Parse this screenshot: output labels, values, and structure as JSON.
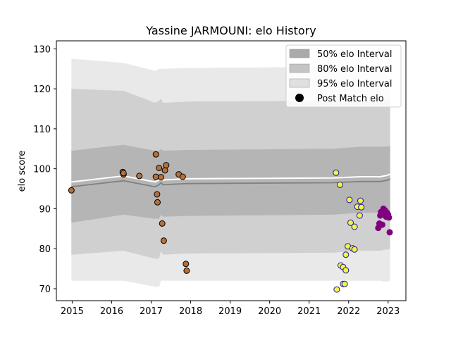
{
  "chart_data": {
    "type": "scatter",
    "title": "Yassine JARMOUNI: elo History",
    "xlabel": "",
    "ylabel": "elo score",
    "xlim": [
      2014.6,
      2023.45
    ],
    "ylim": [
      67,
      132
    ],
    "x_ticks": [
      2015,
      2016,
      2017,
      2018,
      2019,
      2020,
      2021,
      2022,
      2023
    ],
    "x_tick_labels": [
      "2015",
      "2016",
      "2017",
      "2018",
      "2019",
      "2020",
      "2021",
      "2022",
      "2023"
    ],
    "y_ticks": [
      70,
      80,
      90,
      100,
      110,
      120,
      130
    ],
    "y_tick_labels": [
      "70",
      "80",
      "90",
      "100",
      "110",
      "120",
      "130"
    ],
    "grid": false,
    "legend_position": "top-right",
    "legend": [
      {
        "label": "50% elo Interval",
        "kind": "band",
        "color": "#aaaaaa"
      },
      {
        "label": "80% elo Interval",
        "kind": "band",
        "color": "#c4c4c4"
      },
      {
        "label": "95% elo Interval",
        "kind": "band",
        "color": "#e0e0e0"
      },
      {
        "label": "Post Match elo",
        "kind": "marker",
        "color": "#000000"
      }
    ],
    "bands": {
      "x": [
        2014.98,
        2016.3,
        2017.1,
        2017.2,
        2017.25,
        2017.3,
        2017.9,
        2021.6,
        2022.3,
        2022.8,
        2022.9,
        2023.0,
        2023.05
      ],
      "mean": [
        95.5,
        97.0,
        95.5,
        96.0,
        96.5,
        96.0,
        96.3,
        96.5,
        96.8,
        96.8,
        97.0,
        97.2,
        97.5
      ],
      "band50": {
        "lower": [
          86.5,
          88.5,
          87.5,
          87.5,
          88.5,
          88.0,
          88.2,
          88.5,
          89.0,
          89.0,
          89.2,
          89.3,
          89.5
        ],
        "upper": [
          104.5,
          106.0,
          104.5,
          104.5,
          105.0,
          104.5,
          104.7,
          105.0,
          105.5,
          105.5,
          105.5,
          105.6,
          105.8
        ]
      },
      "band80": {
        "lower": [
          78.5,
          79.5,
          77.5,
          77.5,
          79.5,
          78.5,
          78.8,
          79.0,
          79.5,
          79.5,
          79.7,
          79.8,
          80.0
        ],
        "upper": [
          120.0,
          119.5,
          116.5,
          117.0,
          117.5,
          116.5,
          116.8,
          117.0,
          117.2,
          117.2,
          117.2,
          117.3,
          117.5
        ]
      },
      "band95": {
        "lower": [
          72.0,
          72.0,
          70.5,
          70.5,
          72.0,
          72.0,
          72.0,
          72.0,
          72.0,
          72.0,
          71.8,
          71.8,
          72.0
        ],
        "upper": [
          127.5,
          126.5,
          124.5,
          125.0,
          125.0,
          125.0,
          125.2,
          125.5,
          125.7,
          125.7,
          125.8,
          125.8,
          126.0
        ]
      }
    },
    "series": [
      {
        "color": "#b5703a",
        "points": [
          [
            2014.98,
            94.6
          ],
          [
            2016.28,
            99.2
          ],
          [
            2016.3,
            98.6
          ],
          [
            2016.3,
            98.9
          ],
          [
            2016.7,
            98.2
          ],
          [
            2017.12,
            103.6
          ],
          [
            2017.12,
            98.0
          ],
          [
            2017.15,
            93.6
          ],
          [
            2017.16,
            91.6
          ],
          [
            2017.2,
            100.2
          ],
          [
            2017.25,
            97.9
          ],
          [
            2017.28,
            86.3
          ],
          [
            2017.32,
            82.0
          ],
          [
            2017.35,
            99.6
          ],
          [
            2017.38,
            100.9
          ],
          [
            2017.7,
            98.6
          ],
          [
            2017.8,
            98.0
          ],
          [
            2017.88,
            76.2
          ],
          [
            2017.9,
            74.5
          ]
        ]
      },
      {
        "color": "#f3f34a",
        "points": [
          [
            2021.68,
            99.0
          ],
          [
            2021.7,
            69.8
          ],
          [
            2021.78,
            96.0
          ],
          [
            2021.8,
            75.8
          ],
          [
            2021.86,
            75.4
          ],
          [
            2021.86,
            71.2
          ],
          [
            2021.9,
            71.2
          ],
          [
            2021.93,
            78.5
          ],
          [
            2021.93,
            74.6
          ],
          [
            2021.98,
            80.6
          ],
          [
            2022.02,
            92.2
          ],
          [
            2022.05,
            86.5
          ],
          [
            2022.1,
            80.1
          ],
          [
            2022.15,
            85.5
          ],
          [
            2022.15,
            79.8
          ],
          [
            2022.22,
            90.5
          ],
          [
            2022.28,
            88.3
          ],
          [
            2022.3,
            92.0
          ],
          [
            2022.32,
            90.4
          ]
        ]
      },
      {
        "color": "#800080",
        "points": [
          [
            2022.75,
            85.2
          ],
          [
            2022.78,
            86.3
          ],
          [
            2022.8,
            88.3
          ],
          [
            2022.82,
            89.2
          ],
          [
            2022.85,
            86.0
          ],
          [
            2022.88,
            90.0
          ],
          [
            2022.9,
            88.5
          ],
          [
            2022.92,
            89.6
          ],
          [
            2022.95,
            88.0
          ],
          [
            2022.97,
            89.0
          ],
          [
            2023.0,
            88.5
          ],
          [
            2023.02,
            87.8
          ],
          [
            2023.04,
            84.1
          ]
        ]
      }
    ]
  }
}
